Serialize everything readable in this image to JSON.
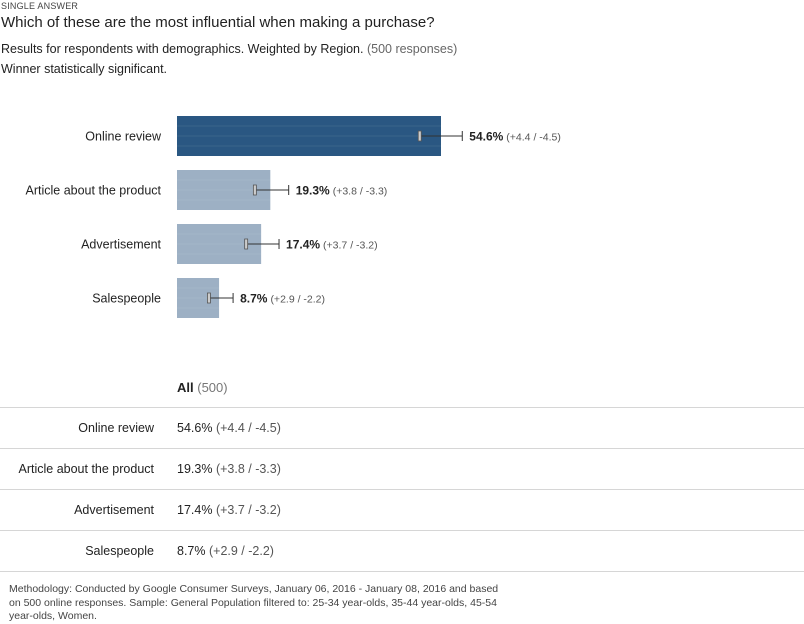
{
  "header": {
    "label": "SINGLE ANSWER",
    "question": "Which of these are the most influential when making a purchase?",
    "subtitle": "Results for respondents with demographics. Weighted by Region.",
    "responses": "(500 responses)",
    "winner": "Winner statistically significant."
  },
  "colors": {
    "winner_bar": "#2a5782",
    "other_bar": "#9db0c4",
    "error_bar": "#333333"
  },
  "chart_data": {
    "type": "bar",
    "orientation": "horizontal",
    "categories": [
      "Online review",
      "Article about the product",
      "Advertisement",
      "Salespeople"
    ],
    "values": [
      54.6,
      19.3,
      17.4,
      8.7
    ],
    "error_plus": [
      4.4,
      3.8,
      3.7,
      2.9
    ],
    "error_minus": [
      4.5,
      3.3,
      3.2,
      2.2
    ],
    "value_labels": [
      "54.6%",
      "19.3%",
      "17.4%",
      "8.7%"
    ],
    "ci_labels": [
      "(+4.4 / -4.5)",
      "(+3.8 / -3.3)",
      "(+3.7 / -3.2)",
      "(+2.9 / -2.2)"
    ],
    "highlight_index": 0
  },
  "table": {
    "header_bold": "All",
    "header_count": "(500)",
    "rows": [
      {
        "name": "Online review",
        "value": "54.6%",
        "ci": "(+4.4 / -4.5)"
      },
      {
        "name": "Article about the product",
        "value": "19.3%",
        "ci": "(+3.8 / -3.3)"
      },
      {
        "name": "Advertisement",
        "value": "17.4%",
        "ci": "(+3.7 / -3.2)"
      },
      {
        "name": "Salespeople",
        "value": "8.7%",
        "ci": "(+2.9 / -2.2)"
      }
    ]
  },
  "methodology": "Methodology: Conducted by Google Consumer Surveys, January 06, 2016 - January 08, 2016 and based on 500 online responses. Sample: General Population filtered to: 25-34 year-olds, 35-44 year-olds, 45-54 year-olds, Women."
}
